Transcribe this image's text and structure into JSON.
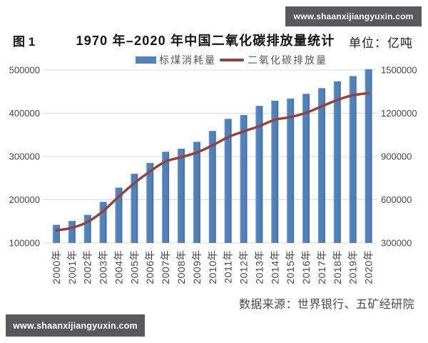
{
  "watermark": {
    "text": "www.shaanxijiangyuxin.com",
    "bar_color": "#59595b",
    "text_color": "#ffffff"
  },
  "header": {
    "figure_label": "图 1",
    "title": "1970 年–2020 年中国二氧化碳排放量统计",
    "unit_label": "单位：亿吨"
  },
  "legend": {
    "items": [
      {
        "label": "标煤消耗量",
        "type": "bar",
        "color": "#4f81bd"
      },
      {
        "label": "二氧化碳排放量",
        "type": "line",
        "color": "#92413c"
      }
    ]
  },
  "source_note": "数据来源：世界银行、五矿经研院",
  "chart_data": {
    "type": "bar+line",
    "title": "1970 年–2020 年中国二氧化碳排放量统计",
    "categories": [
      "2000年",
      "2001年",
      "2002年",
      "2003年",
      "2004年",
      "2005年",
      "2006年",
      "2007年",
      "2008年",
      "2009年",
      "2010年",
      "2011年",
      "2012年",
      "2013年",
      "2014年",
      "2015年",
      "2016年",
      "2017年",
      "2018年",
      "2019年",
      "2020年"
    ],
    "series": [
      {
        "name": "标煤消耗量",
        "type": "bar",
        "axis": "left",
        "color": "#4f81bd",
        "values": [
          142000,
          151000,
          165000,
          195000,
          228000,
          260000,
          285000,
          311000,
          318000,
          334000,
          359000,
          387000,
          396000,
          417000,
          429000,
          434000,
          445000,
          458000,
          474000,
          486000,
          502000
        ]
      },
      {
        "name": "二氧化碳排放量",
        "type": "line",
        "axis": "right",
        "color": "#92413c",
        "values": [
          387000,
          405000,
          446000,
          521000,
          622000,
          715000,
          796000,
          865000,
          895000,
          928000,
          977000,
          1034000,
          1074000,
          1110000,
          1155000,
          1173000,
          1203000,
          1247000,
          1292000,
          1325000,
          1339000
        ]
      }
    ],
    "left_axis": {
      "min": 100000,
      "max": 500000,
      "ticks": [
        100000,
        200000,
        300000,
        400000,
        500000
      ]
    },
    "right_axis": {
      "min": 300000,
      "max": 1500000,
      "ticks": [
        300000,
        600000,
        900000,
        1200000,
        1500000
      ]
    },
    "grid": true,
    "gridline_color": "#d8d8d8",
    "tick_label_color": "#474747",
    "legend_position": "top"
  }
}
